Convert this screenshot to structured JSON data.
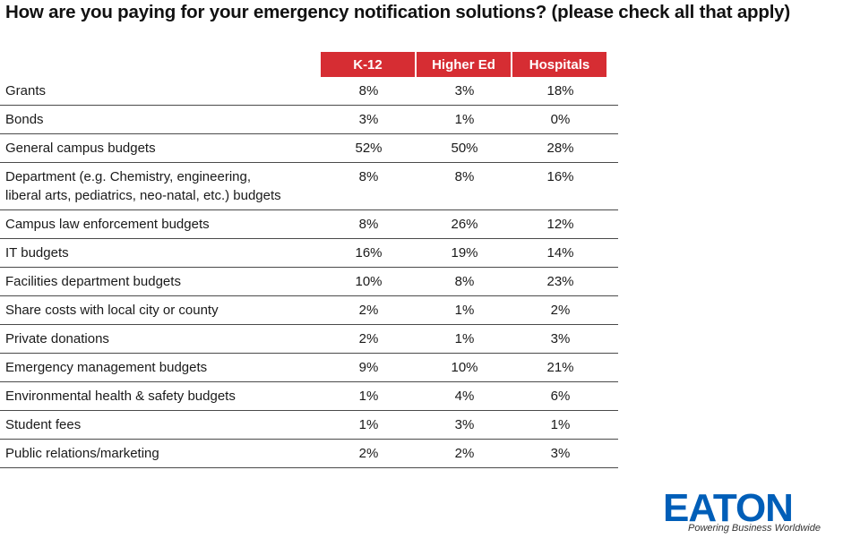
{
  "title": "How are you paying for your emergency notification solutions? (please check all that apply)",
  "brand": {
    "logo_text": "EATON",
    "tagline": "Powering Business Worldwide",
    "logo_color": "#005eb8"
  },
  "colors": {
    "header_bg": "#d62d33",
    "header_text": "#ffffff",
    "rule": "#4a4a4a"
  },
  "chart_data": {
    "type": "table",
    "title": "How are you paying for your emergency notification solutions? (please check all that apply)",
    "columns": [
      "K-12",
      "Higher Ed",
      "Hospitals"
    ],
    "rows": [
      {
        "label": "Grants",
        "values": [
          "8%",
          "3%",
          "18%"
        ]
      },
      {
        "label": "Bonds",
        "values": [
          "3%",
          "1%",
          "0%"
        ]
      },
      {
        "label": "General campus budgets",
        "values": [
          "52%",
          "50%",
          "28%"
        ]
      },
      {
        "label": "Department (e.g. Chemistry, engineering,",
        "label2": "liberal arts, pediatrics, neo-natal, etc.) budgets",
        "values": [
          "8%",
          "8%",
          "16%"
        ]
      },
      {
        "label": "Campus law enforcement budgets",
        "values": [
          "8%",
          "26%",
          "12%"
        ]
      },
      {
        "label": "IT budgets",
        "values": [
          "16%",
          "19%",
          "14%"
        ]
      },
      {
        "label": "Facilities department budgets",
        "values": [
          "10%",
          "8%",
          "23%"
        ]
      },
      {
        "label": "Share costs with local city or county",
        "values": [
          "2%",
          "1%",
          "2%"
        ]
      },
      {
        "label": "Private donations",
        "values": [
          "2%",
          "1%",
          "3%"
        ]
      },
      {
        "label": "Emergency management budgets",
        "values": [
          "9%",
          "10%",
          "21%"
        ]
      },
      {
        "label": "Environmental health & safety budgets",
        "values": [
          "1%",
          "4%",
          "6%"
        ]
      },
      {
        "label": "Student fees",
        "values": [
          "1%",
          "3%",
          "1%"
        ]
      },
      {
        "label": "Public relations/marketing",
        "values": [
          "2%",
          "2%",
          "3%"
        ]
      }
    ]
  }
}
